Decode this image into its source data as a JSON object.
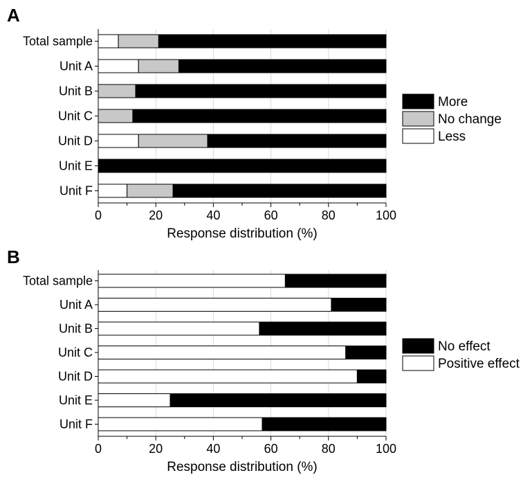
{
  "chart_data": [
    {
      "type": "bar",
      "orientation": "horizontal",
      "stacked": true,
      "panel_label": "A",
      "categories": [
        "Total sample",
        "Unit A",
        "Unit B",
        "Unit C",
        "Unit D",
        "Unit E",
        "Unit F"
      ],
      "series": [
        {
          "name": "Less",
          "color": "#ffffff",
          "values": [
            7,
            14,
            0,
            0,
            14,
            0,
            10
          ]
        },
        {
          "name": "No change",
          "color": "#c8c8c8",
          "values": [
            14,
            14,
            13,
            12,
            24,
            0,
            16
          ]
        },
        {
          "name": "More",
          "color": "#000000",
          "values": [
            79,
            72,
            87,
            88,
            62,
            100,
            74
          ]
        }
      ],
      "legend_order": [
        "More",
        "No change",
        "Less"
      ],
      "legend_position": "right",
      "xlabel": "Response distribution (%)",
      "xlim": [
        0,
        100
      ],
      "xticks": [
        0,
        20,
        40,
        60,
        80,
        100
      ],
      "grid": "vertical"
    },
    {
      "type": "bar",
      "orientation": "horizontal",
      "stacked": true,
      "panel_label": "B",
      "categories": [
        "Total sample",
        "Unit A",
        "Unit B",
        "Unit C",
        "Unit D",
        "Unit E",
        "Unit F"
      ],
      "series": [
        {
          "name": "Positive effect",
          "color": "#ffffff",
          "values": [
            65,
            81,
            56,
            86,
            90,
            25,
            57
          ]
        },
        {
          "name": "No effect",
          "color": "#000000",
          "values": [
            35,
            19,
            44,
            14,
            10,
            75,
            43
          ]
        }
      ],
      "legend_order": [
        "No effect",
        "Positive effect"
      ],
      "legend_position": "right",
      "xlabel": "Response distribution (%)",
      "xlim": [
        0,
        100
      ],
      "xticks": [
        0,
        20,
        40,
        60,
        80,
        100
      ],
      "grid": "vertical"
    }
  ]
}
